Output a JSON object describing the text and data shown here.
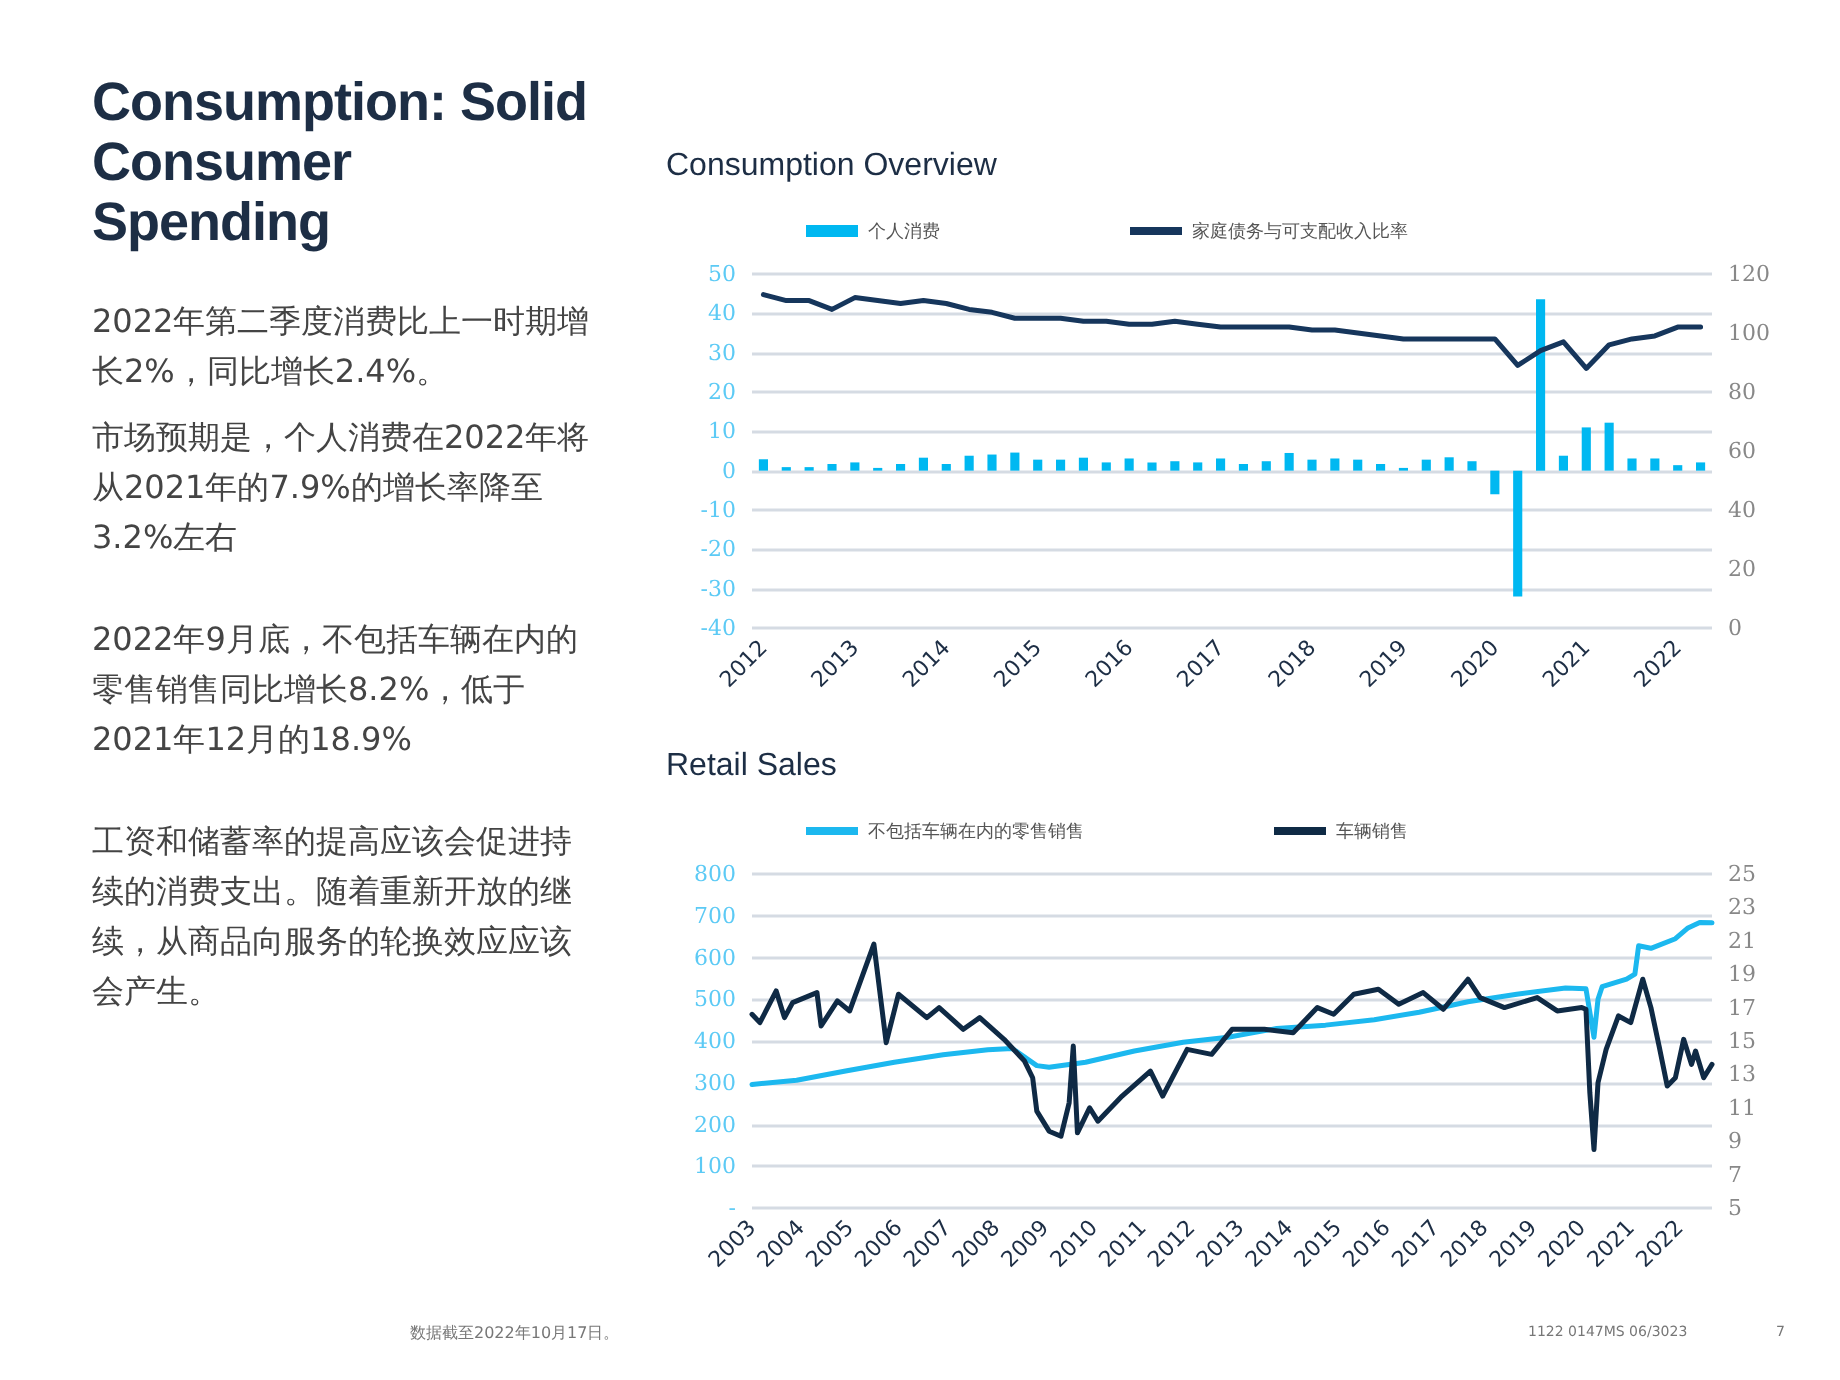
{
  "chart_data": [
    {
      "type": "other",
      "title": "Consumption: Solid Consumer Spending",
      "annotations": [
        "2022年第二季度消费比上一时期增长2%，同比增长2.4%。",
        "市场预期是，个人消费在2022年将从2021年的7.9%的增长率降至3.2%左右",
        "2022年9月底，不包括车辆在内的零售销售同比增长8.2%，低于2021年12月的18.9%",
        "工资和储蓄率的提高应该会促进持续的消费支出。随着重新开放的继续，从商品向服务的轮换效应应该会产生。",
        "数据截至2022年10月17日。",
        "1122 0147MS 06/3023",
        "7"
      ]
    },
    {
      "type": "bar",
      "title": "Consumption Overview",
      "categories": [
        "2012",
        null,
        null,
        null,
        "2013",
        null,
        null,
        null,
        "2014",
        null,
        null,
        null,
        "2015",
        null,
        null,
        null,
        "2016",
        null,
        null,
        null,
        "2017",
        null,
        null,
        null,
        "2018",
        null,
        null,
        null,
        "2019",
        null,
        null,
        null,
        "2020",
        null,
        null,
        null,
        "2021",
        null,
        null,
        null,
        "2022",
        null
      ],
      "series": [
        {
          "name": "个人消费",
          "type": "bar",
          "color": "#00b8f1",
          "values": [
            2.9,
            0.9,
            0.9,
            1.7,
            2.1,
            0.7,
            1.7,
            3.3,
            1.7,
            3.8,
            4.1,
            4.6,
            2.8,
            2.8,
            3.3,
            2.1,
            3.1,
            2.1,
            2.4,
            2.1,
            3.1,
            1.7,
            2.4,
            4.5,
            2.8,
            3.1,
            2.8,
            1.7,
            0.7,
            2.8,
            3.4,
            2.4,
            -6,
            -32,
            43.6,
            3.8,
            11,
            12.2,
            3.1,
            3.1,
            1.4,
            2.1
          ]
        },
        {
          "name": "家庭债务与可支配收入比率",
          "type": "line",
          "axis": "y2",
          "color": "#16365c",
          "values": [
            113,
            111,
            111,
            108,
            112,
            111,
            110,
            111,
            110,
            108,
            107,
            105,
            105,
            105,
            104,
            104,
            103,
            103,
            104,
            103,
            102,
            102,
            102,
            102,
            101,
            101,
            100,
            99,
            98,
            98,
            98,
            98,
            98,
            89,
            94,
            97,
            88,
            96,
            98,
            99,
            102,
            102
          ]
        }
      ],
      "ylim": [
        -40,
        50
      ],
      "yticks": [
        -40,
        -30,
        -20,
        -10,
        0,
        10,
        20,
        30,
        40,
        50
      ],
      "y2lim": [
        0,
        120
      ],
      "y2ticks": [
        0,
        20,
        40,
        60,
        80,
        100,
        120
      ],
      "grid": "y",
      "legend": "top",
      "marker": "none"
    },
    {
      "type": "line",
      "title": "Retail Sales",
      "series": [
        {
          "name": "不包括车辆在内的零售销售",
          "color": "#1cb8ef",
          "x": [
            "2003-01",
            "2003-12",
            "2004-12",
            "2005-12",
            "2006-12",
            "2007-11",
            "2008-05",
            "2008-11",
            "2009-02",
            "2009-11",
            "2010-11",
            "2011-11",
            "2012-10",
            "2013-10",
            "2014-10",
            "2015-10",
            "2016-09",
            "2017-09",
            "2018-09",
            "2019-09",
            "2020-02",
            "2020-04",
            "2020-05",
            "2020-06",
            "2020-12",
            "2021-02",
            "2021-03",
            "2021-06",
            "2021-12",
            "2022-03",
            "2022-06",
            "2022-09"
          ],
          "values": [
            296,
            306,
            328,
            349,
            367,
            379,
            382,
            341,
            337,
            349,
            376,
            397,
            409,
            430,
            438,
            451,
            469,
            494,
            512,
            527,
            525,
            409,
            500,
            530,
            548,
            560,
            628,
            622,
            645,
            670,
            684,
            683
          ]
        },
        {
          "name": "车辆销售",
          "axis": "y2",
          "color": "#0f2a45",
          "x": [
            "2003-01",
            "2003-03",
            "2003-07",
            "2003-09",
            "2003-11",
            "2004-05",
            "2004-06",
            "2004-10",
            "2005-01",
            "2005-07",
            "2005-10",
            "2006-01",
            "2006-08",
            "2006-11",
            "2007-05",
            "2007-09",
            "2008-03",
            "2008-08",
            "2008-10",
            "2008-11",
            "2009-02",
            "2009-05",
            "2009-07",
            "2009-08",
            "2009-09",
            "2009-12",
            "2010-02",
            "2010-08",
            "2011-03",
            "2011-06",
            "2011-12",
            "2012-06",
            "2012-11",
            "2013-07",
            "2014-02",
            "2014-08",
            "2014-12",
            "2015-05",
            "2015-11",
            "2016-04",
            "2016-10",
            "2017-03",
            "2017-09",
            "2017-12",
            "2018-06",
            "2019-02",
            "2019-07",
            "2020-01",
            "2020-02",
            "2020-03",
            "2020-04",
            "2020-05",
            "2020-07",
            "2020-10",
            "2021-01",
            "2021-04",
            "2021-06",
            "2021-08",
            "2021-10",
            "2021-12",
            "2022-02",
            "2022-04",
            "2022-05",
            "2022-07",
            "2022-09"
          ],
          "values": [
            16.6,
            16.1,
            18,
            16.4,
            17.3,
            17.9,
            15.9,
            17.4,
            16.8,
            20.8,
            14.9,
            17.8,
            16.4,
            17,
            15.7,
            16.4,
            15.1,
            13.8,
            12.8,
            10.8,
            9.6,
            9.3,
            11.3,
            14.7,
            9.5,
            11,
            10.2,
            11.7,
            13.2,
            11.7,
            14.5,
            14.2,
            15.7,
            15.7,
            15.5,
            17,
            16.6,
            17.8,
            18.1,
            17.2,
            17.9,
            16.9,
            18.7,
            17.6,
            17,
            17.6,
            16.8,
            17,
            16.9,
            11.9,
            8.5,
            12.5,
            14.5,
            16.5,
            16.1,
            18.7,
            17,
            14.7,
            12.3,
            12.8,
            15.1,
            13.6,
            14.4,
            12.8,
            13.6
          ]
        }
      ],
      "xlim": [
        "2003-01",
        "2022-09"
      ],
      "xticks": [
        "2003",
        "2004",
        "2005",
        "2006",
        "2007",
        "2008",
        "2009",
        "2010",
        "2011",
        "2012",
        "2013",
        "2014",
        "2015",
        "2016",
        "2017",
        "2018",
        "2019",
        "2020",
        "2021",
        "2022"
      ],
      "ylim": [
        0,
        800
      ],
      "yticks": [
        {
          "value": 0,
          "label": "-"
        },
        100,
        200,
        300,
        400,
        500,
        600,
        700,
        800
      ],
      "y2lim": [
        5,
        25
      ],
      "y2ticks": [
        5,
        7,
        9,
        11,
        13,
        15,
        17,
        19,
        21,
        23,
        25
      ],
      "grid": "y",
      "legend": "top",
      "marker": "none"
    }
  ]
}
